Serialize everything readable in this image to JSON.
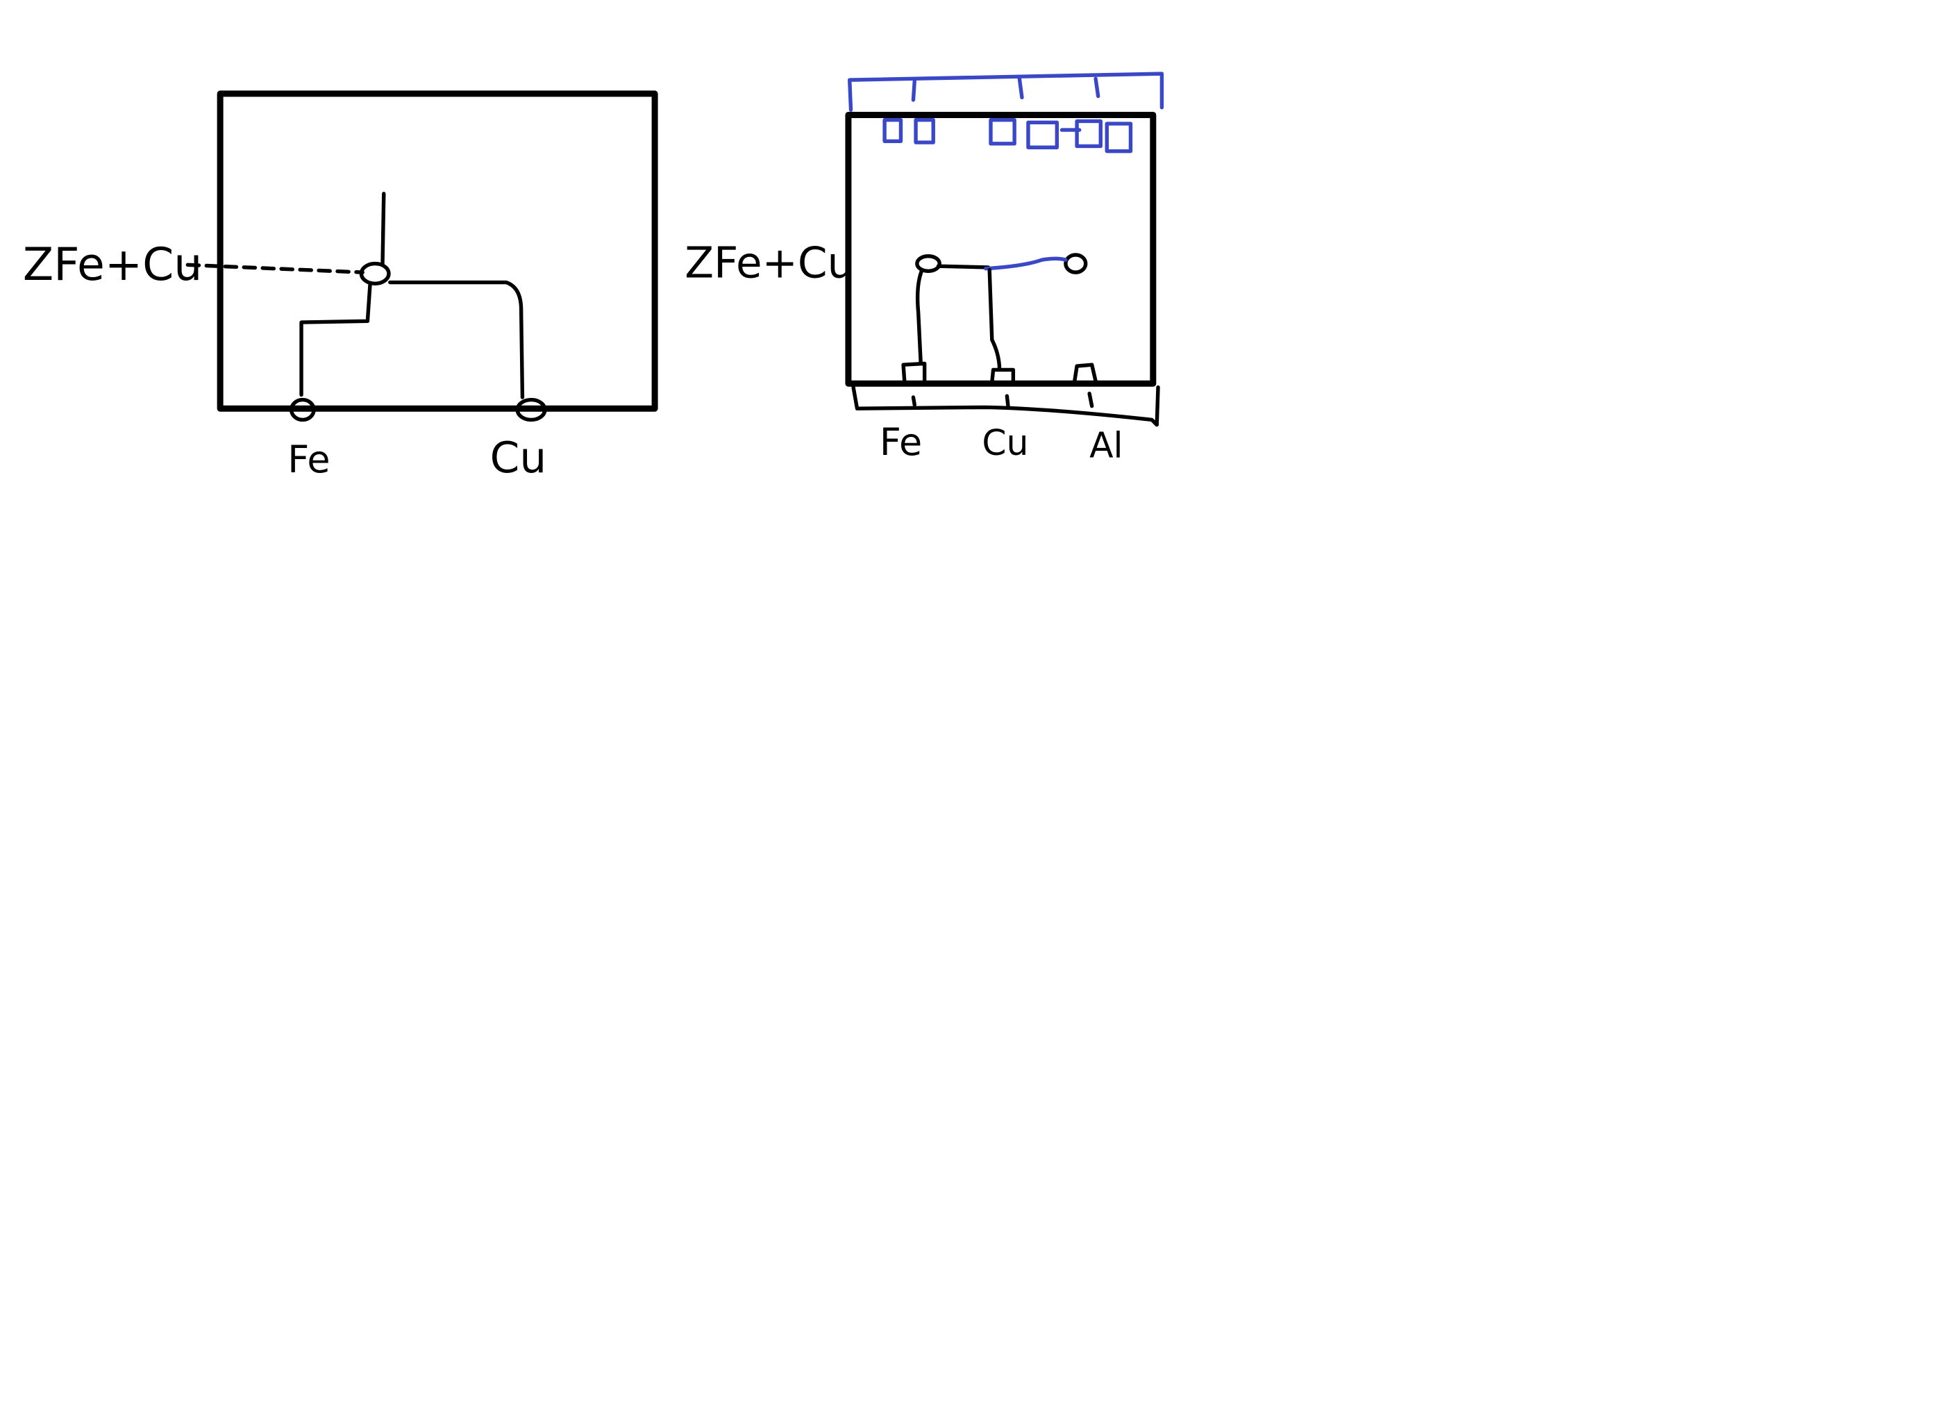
{
  "canvas": {
    "background": "#ffffff",
    "ink_color": "#000000",
    "accent_ink_color": "#3a48c8"
  },
  "left_diagram": {
    "compound_label": "ZFe+Cu",
    "bottom_labels": [
      "Fe",
      "Cu"
    ]
  },
  "right_diagram": {
    "compound_label": "ZFe+Cu",
    "bottom_labels": [
      "Fe",
      "Cu",
      "Al"
    ]
  }
}
